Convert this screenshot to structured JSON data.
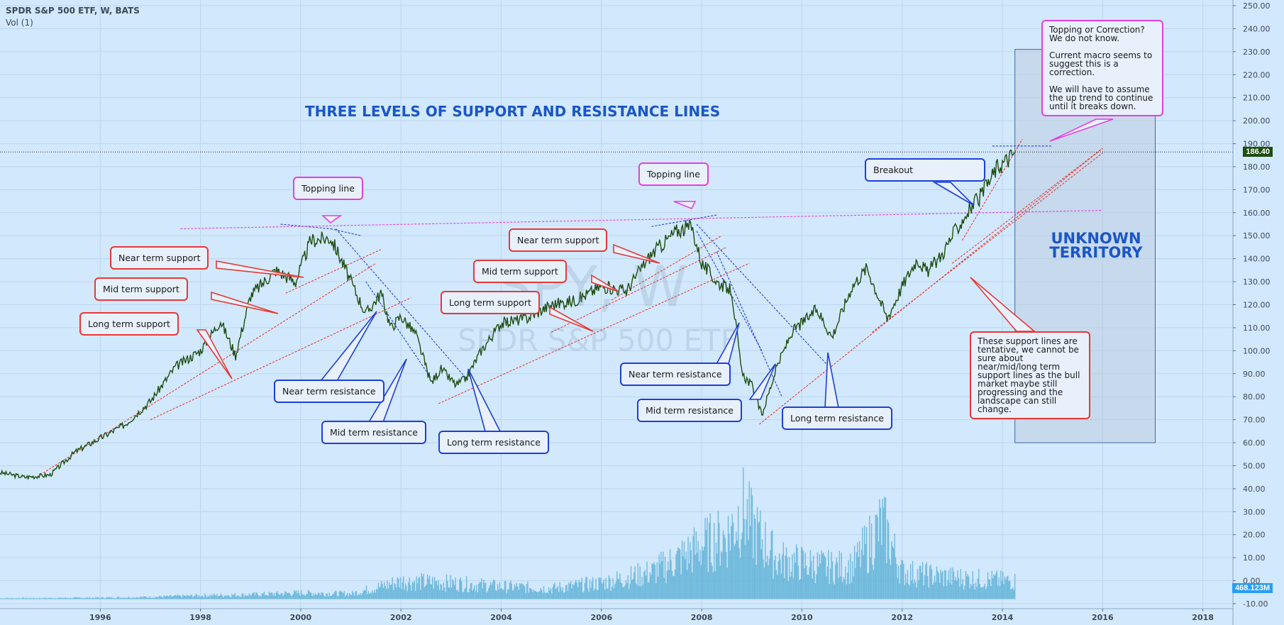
{
  "header": {
    "symbol_title": "SPDR S&P 500 ETF, W, BATS",
    "indicator": "Vol (1)"
  },
  "watermark": {
    "symbol": "SPY, W",
    "name": "SPDR S&P 500 ETF"
  },
  "annotations": {
    "main_title": "THREE LEVELS OF SUPPORT AND RESISTANCE LINES",
    "unknown_territory": "UNKNOWN TERRITORY",
    "near_support_1": "Near term support",
    "mid_support_1": "Mid term support",
    "long_support_1": "Long term support",
    "topping_1": "Topping line",
    "near_resistance_1": "Near term resistance",
    "mid_resistance_1": "Mid term resistance",
    "long_resistance_1": "Long term resistance",
    "near_support_2": "Near term support",
    "mid_support_2": "Mid term support",
    "long_support_2": "Long term support",
    "topping_2": "Topping line",
    "near_resistance_2": "Near term resistance",
    "mid_resistance_2": "Mid term resistance",
    "long_resistance_2": "Long term resistance",
    "breakout": "Breakout",
    "topping_note_1": "Topping or Correction? We do not know.",
    "topping_note_2": "Current macro seems to suggest this is a correction.",
    "topping_note_3": "We will have to assume the up trend to continue until it breaks down.",
    "support_note": "These support lines are tentative, we cannot be sure about near/mid/long term support lines as the bull market maybe still progressing and the landscape can still change."
  },
  "price_label": "186.40",
  "volume_label": "468.123M",
  "colors": {
    "price_line": "#1e4d10",
    "volume_bars": "#5fb2d6",
    "support_lines": "#e53935",
    "resistance_lines": "#1e3fd6",
    "topping_line": "#e43fe0",
    "title_blue": "#1a56c8"
  },
  "chart_data": {
    "type": "line",
    "title": "THREE LEVELS OF SUPPORT AND RESISTANCE LINES",
    "x_ticks": [
      "1996",
      "1998",
      "2000",
      "2002",
      "2004",
      "2006",
      "2008",
      "2010",
      "2012",
      "2014",
      "2016",
      "2018"
    ],
    "y_ticks": [
      "250.00",
      "240.00",
      "230.00",
      "220.00",
      "210.00",
      "200.00",
      "190.00",
      "180.00",
      "170.00",
      "160.00",
      "150.00",
      "140.00",
      "130.00",
      "120.00",
      "110.00",
      "100.00",
      "90.00",
      "80.00",
      "70.00",
      "60.00",
      "50.00",
      "40.00",
      "30.00",
      "20.00",
      "10.00",
      "0.00",
      "-10.00"
    ],
    "ylim": [
      -10,
      250
    ],
    "xlim": [
      1994.0,
      2018.6
    ],
    "grid": true,
    "current_price": 186.4,
    "series": [
      {
        "name": "SPY",
        "x": [
          1994.0,
          1994.5,
          1995.0,
          1995.5,
          1996.0,
          1996.5,
          1997.0,
          1997.5,
          1998.0,
          1998.4,
          1998.7,
          1999.0,
          1999.5,
          1999.9,
          2000.2,
          2000.6,
          2000.8,
          2001.0,
          2001.3,
          2001.6,
          2001.8,
          2002.0,
          2002.3,
          2002.6,
          2002.8,
          2003.1,
          2003.3,
          2003.6,
          2004.0,
          2004.5,
          2005.0,
          2005.5,
          2006.0,
          2006.5,
          2006.8,
          2007.0,
          2007.5,
          2007.8,
          2008.0,
          2008.3,
          2008.6,
          2008.8,
          2009.0,
          2009.2,
          2009.5,
          2009.8,
          2010.0,
          2010.3,
          2010.6,
          2011.0,
          2011.3,
          2011.7,
          2012.0,
          2012.3,
          2012.5,
          2012.8,
          2013.0,
          2013.3,
          2013.6,
          2013.9,
          2014.1,
          2014.25
        ],
        "y": [
          47,
          45,
          46,
          56,
          62,
          68,
          78,
          93,
          100,
          113,
          98,
          124,
          135,
          130,
          148,
          149,
          140,
          130,
          116,
          125,
          110,
          115,
          107,
          86,
          92,
          85,
          88,
          100,
          112,
          114,
          120,
          122,
          128,
          126,
          136,
          142,
          152,
          154,
          138,
          130,
          126,
          90,
          85,
          72,
          93,
          108,
          112,
          118,
          106,
          128,
          136,
          114,
          128,
          140,
          134,
          142,
          150,
          160,
          168,
          180,
          183,
          186.4
        ]
      }
    ],
    "volume": {
      "name": "Vol",
      "x": [
        1994,
        1995,
        1996,
        1997,
        1998,
        1999,
        2000,
        2001,
        2002,
        2003,
        2004,
        2005,
        2006,
        2007,
        2007.5,
        2008,
        2008.5,
        2008.8,
        2009,
        2009.5,
        2010,
        2010.5,
        2011,
        2011.6,
        2012,
        2013,
        2014.25
      ],
      "y": [
        0.5,
        0.6,
        0.8,
        1.2,
        2,
        2.5,
        3.5,
        3,
        10,
        9,
        7,
        6,
        9,
        15,
        22,
        30,
        35,
        50,
        40,
        22,
        20,
        18,
        18,
        42,
        15,
        12,
        10
      ]
    },
    "trend_lines": [
      {
        "kind": "support",
        "from": [
          1994.8,
          46
        ],
        "to": [
          2001.5,
          138
        ]
      },
      {
        "kind": "support",
        "from": [
          1997.0,
          70
        ],
        "to": [
          2002.2,
          123
        ]
      },
      {
        "kind": "support",
        "from": [
          1999.7,
          125
        ],
        "to": [
          2001.6,
          144
        ]
      },
      {
        "kind": "support",
        "from": [
          2002.75,
          77
        ],
        "to": [
          2008.95,
          138
        ]
      },
      {
        "kind": "support",
        "from": [
          2005.0,
          108
        ],
        "to": [
          2008.5,
          145
        ]
      },
      {
        "kind": "support",
        "from": [
          2006.2,
          122
        ],
        "to": [
          2008.4,
          150
        ]
      },
      {
        "kind": "support",
        "from": [
          2009.15,
          68
        ],
        "to": [
          2016.0,
          188
        ]
      },
      {
        "kind": "support",
        "from": [
          2011.4,
          108
        ],
        "to": [
          2016.0,
          186
        ]
      },
      {
        "kind": "support",
        "from": [
          2013.0,
          138
        ],
        "to": [
          2016.0,
          188
        ]
      },
      {
        "kind": "support",
        "from": [
          2013.2,
          148
        ],
        "to": [
          2014.4,
          192
        ]
      },
      {
        "kind": "resistance",
        "from": [
          1999.6,
          155
        ],
        "to": [
          2000.6,
          153
        ]
      },
      {
        "kind": "resistance",
        "from": [
          2000.6,
          153
        ],
        "to": [
          2001.2,
          150
        ]
      },
      {
        "kind": "resistance",
        "from": [
          2000.7,
          153
        ],
        "to": [
          2003.3,
          88
        ]
      },
      {
        "kind": "resistance",
        "from": [
          2001.3,
          130
        ],
        "to": [
          2002.6,
          88
        ]
      },
      {
        "kind": "resistance",
        "from": [
          2007.0,
          154
        ],
        "to": [
          2008.3,
          159
        ]
      },
      {
        "kind": "resistance",
        "from": [
          2007.9,
          155
        ],
        "to": [
          2010.5,
          94
        ]
      },
      {
        "kind": "resistance",
        "from": [
          2008.3,
          143
        ],
        "to": [
          2009.6,
          80
        ]
      },
      {
        "kind": "resistance",
        "from": [
          2007.9,
          152
        ],
        "to": [
          2009.2,
          100
        ]
      },
      {
        "kind": "resistance",
        "from": [
          2013.8,
          189
        ],
        "to": [
          2015.0,
          189
        ]
      },
      {
        "kind": "topping",
        "from": [
          1997.6,
          153
        ],
        "to": [
          2016.0,
          161
        ]
      }
    ],
    "unknown_zone": {
      "x": [
        2014.25,
        2017.05
      ],
      "y": [
        60,
        231
      ]
    }
  }
}
